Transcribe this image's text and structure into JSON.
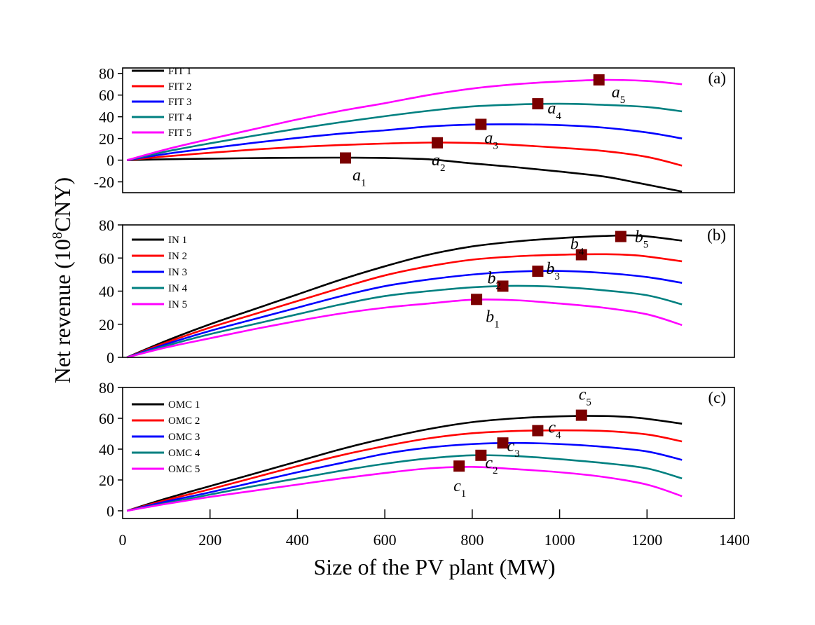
{
  "chart_data": {
    "type": "line",
    "xlabel": "Size of the PV plant (MW)",
    "ylabel": "Net revenue (10",
    "ylabel_sup": "8",
    "ylabel_end": "CNY)",
    "xlim": [
      0,
      1400
    ],
    "xticks": [
      0,
      200,
      400,
      600,
      800,
      1000,
      1200,
      1400
    ],
    "grid": false,
    "marker_color": "#7b0000",
    "panels": [
      {
        "label": "(a)",
        "ylim": [
          -30,
          85
        ],
        "yticks": [
          -20,
          0,
          20,
          40,
          60,
          80
        ],
        "legend_position": "top-left",
        "series": [
          {
            "name": "FIT 1",
            "color": "#000000",
            "x": [
              10,
              100,
              200,
              300,
              400,
              500,
              600,
              700,
              800,
              900,
              1000,
              1100,
              1180,
              1280
            ],
            "y": [
              0,
              0.8,
              1.4,
              1.9,
              2.2,
              2.3,
              2,
              0.8,
              -3,
              -6.5,
              -10.5,
              -15,
              -21,
              -29
            ]
          },
          {
            "name": "FIT 2",
            "color": "#ff0000",
            "x": [
              10,
              100,
              200,
              300,
              400,
              500,
              600,
              700,
              800,
              900,
              1000,
              1100,
              1200,
              1280
            ],
            "y": [
              0,
              3.5,
              6.8,
              9.8,
              12.2,
              14,
              15.3,
              16.2,
              15.8,
              14,
              11.5,
              8.5,
              3,
              -5
            ]
          },
          {
            "name": "FIT 3",
            "color": "#0000ff",
            "x": [
              10,
              100,
              200,
              300,
              400,
              500,
              600,
              700,
              800,
              900,
              1000,
              1100,
              1200,
              1280
            ],
            "y": [
              0,
              5.8,
              11,
              16,
              20.5,
              24.5,
              27.5,
              31,
              32.8,
              33,
              32.3,
              30,
              25.5,
              20
            ]
          },
          {
            "name": "FIT 4",
            "color": "#008080",
            "x": [
              10,
              100,
              200,
              300,
              400,
              500,
              600,
              700,
              800,
              900,
              1000,
              1100,
              1200,
              1280
            ],
            "y": [
              0,
              8,
              15.5,
              22.5,
              29,
              35,
              40.5,
              45.5,
              49.5,
              51.3,
              52,
              51,
              49,
              45
            ]
          },
          {
            "name": "FIT 5",
            "color": "#ff00ff",
            "x": [
              10,
              100,
              200,
              300,
              400,
              500,
              600,
              700,
              800,
              900,
              1000,
              1100,
              1200,
              1280
            ],
            "y": [
              0,
              10,
              19.5,
              28.5,
              37.5,
              45.5,
              52.5,
              60,
              66,
              70,
              72.5,
              74,
              73,
              70
            ]
          }
        ],
        "markers": [
          {
            "label": "a",
            "sub": "1",
            "x": 510,
            "y": 2
          },
          {
            "label": "a",
            "sub": "2",
            "x": 720,
            "y": 16
          },
          {
            "label": "a",
            "sub": "3",
            "x": 820,
            "y": 33
          },
          {
            "label": "a",
            "sub": "4",
            "x": 950,
            "y": 52
          },
          {
            "label": "a",
            "sub": "5",
            "x": 1090,
            "y": 74
          }
        ]
      },
      {
        "label": "(b)",
        "ylim": [
          0,
          80
        ],
        "yticks": [
          0,
          20,
          40,
          60,
          80
        ],
        "legend_position": "top-left",
        "series": [
          {
            "name": "IN 1",
            "color": "#000000",
            "x": [
              10,
              100,
              200,
              300,
              400,
              500,
              600,
              700,
              800,
              900,
              1000,
              1100,
              1180,
              1280
            ],
            "y": [
              0,
              10,
              20,
              29,
              38,
              47,
              55,
              62,
              67,
              70,
              72,
              73.3,
              73.5,
              70.5
            ]
          },
          {
            "name": "IN 2",
            "color": "#ff0000",
            "x": [
              10,
              100,
              200,
              300,
              400,
              500,
              600,
              700,
              800,
              900,
              1000,
              1100,
              1180,
              1280
            ],
            "y": [
              0,
              9,
              18,
              26,
              34,
              42,
              49.5,
              55,
              59,
              61,
              62,
              62.3,
              61.5,
              58
            ]
          },
          {
            "name": "IN 3",
            "color": "#0000ff",
            "x": [
              10,
              100,
              200,
              300,
              400,
              500,
              600,
              700,
              800,
              900,
              1000,
              1100,
              1200,
              1280
            ],
            "y": [
              0,
              8,
              16,
              23,
              30,
              37,
              43,
              47,
              50,
              51.8,
              52.2,
              51,
              48.5,
              45
            ]
          },
          {
            "name": "IN 4",
            "color": "#008080",
            "x": [
              10,
              100,
              200,
              300,
              400,
              500,
              600,
              700,
              800,
              900,
              1000,
              1100,
              1200,
              1280
            ],
            "y": [
              0,
              7,
              14,
              20,
              26,
              32,
              37,
              40,
              42.3,
              43.2,
              42.5,
              40.5,
              37.5,
              32
            ]
          },
          {
            "name": "IN 5",
            "color": "#ff00ff",
            "x": [
              10,
              100,
              200,
              300,
              400,
              500,
              600,
              700,
              800,
              900,
              1000,
              1100,
              1200,
              1280
            ],
            "y": [
              0,
              6,
              11.5,
              17,
              22,
              26.5,
              30,
              32.5,
              34.8,
              34.5,
              32.5,
              30,
              26,
              19.5
            ]
          }
        ],
        "markers": [
          {
            "label": "b",
            "sub": "1",
            "x": 810,
            "y": 35
          },
          {
            "label": "b",
            "sub": "2",
            "x": 870,
            "y": 43
          },
          {
            "label": "b",
            "sub": "3",
            "x": 950,
            "y": 52
          },
          {
            "label": "b",
            "sub": "4",
            "x": 1050,
            "y": 62
          },
          {
            "label": "b",
            "sub": "5",
            "x": 1140,
            "y": 73
          }
        ]
      },
      {
        "label": "(c)",
        "ylim": [
          -5,
          80
        ],
        "yticks": [
          0,
          20,
          40,
          60,
          80
        ],
        "legend_position": "top-left",
        "series": [
          {
            "name": "OMC 1",
            "color": "#000000",
            "x": [
              10,
              100,
              200,
              300,
              400,
              500,
              600,
              700,
              800,
              900,
              1000,
              1100,
              1180,
              1280
            ],
            "y": [
              0,
              8,
              16,
              24,
              32,
              40,
              47,
              53,
              57.5,
              60,
              61.3,
              61.5,
              60.3,
              56.5
            ]
          },
          {
            "name": "OMC 2",
            "color": "#ff0000",
            "x": [
              10,
              100,
              200,
              300,
              400,
              500,
              600,
              700,
              800,
              900,
              1000,
              1100,
              1200,
              1280
            ],
            "y": [
              0,
              7,
              14,
              21.5,
              29,
              36,
              42,
              47,
              50.3,
              51.8,
              52.2,
              51.8,
              49.5,
              45
            ]
          },
          {
            "name": "OMC 3",
            "color": "#0000ff",
            "x": [
              10,
              100,
              200,
              300,
              400,
              500,
              600,
              700,
              800,
              900,
              1000,
              1100,
              1200,
              1280
            ],
            "y": [
              0,
              6,
              12,
              18.5,
              25,
              31,
              37,
              41,
              43.3,
              44,
              43.3,
              41.5,
              38.5,
              33
            ]
          },
          {
            "name": "OMC 4",
            "color": "#008080",
            "x": [
              10,
              100,
              200,
              300,
              400,
              500,
              600,
              700,
              800,
              900,
              1000,
              1100,
              1200,
              1280
            ],
            "y": [
              0,
              5,
              10.5,
              16,
              21,
              26,
              30.5,
              34,
              36,
              35.5,
              33.5,
              31,
              27.5,
              21
            ]
          },
          {
            "name": "OMC 5",
            "color": "#ff00ff",
            "x": [
              10,
              100,
              200,
              300,
              400,
              500,
              600,
              700,
              800,
              900,
              1000,
              1100,
              1200,
              1280
            ],
            "y": [
              0,
              4.5,
              9,
              13,
              17,
              21,
              24.5,
              27.5,
              28.5,
              27,
              25,
              22,
              17,
              9.5
            ]
          }
        ],
        "markers": [
          {
            "label": "c",
            "sub": "1",
            "x": 770,
            "y": 29
          },
          {
            "label": "c",
            "sub": "2",
            "x": 820,
            "y": 36
          },
          {
            "label": "c",
            "sub": "3",
            "x": 870,
            "y": 44
          },
          {
            "label": "c",
            "sub": "4",
            "x": 950,
            "y": 52
          },
          {
            "label": "c",
            "sub": "5",
            "x": 1050,
            "y": 62
          }
        ]
      }
    ]
  }
}
